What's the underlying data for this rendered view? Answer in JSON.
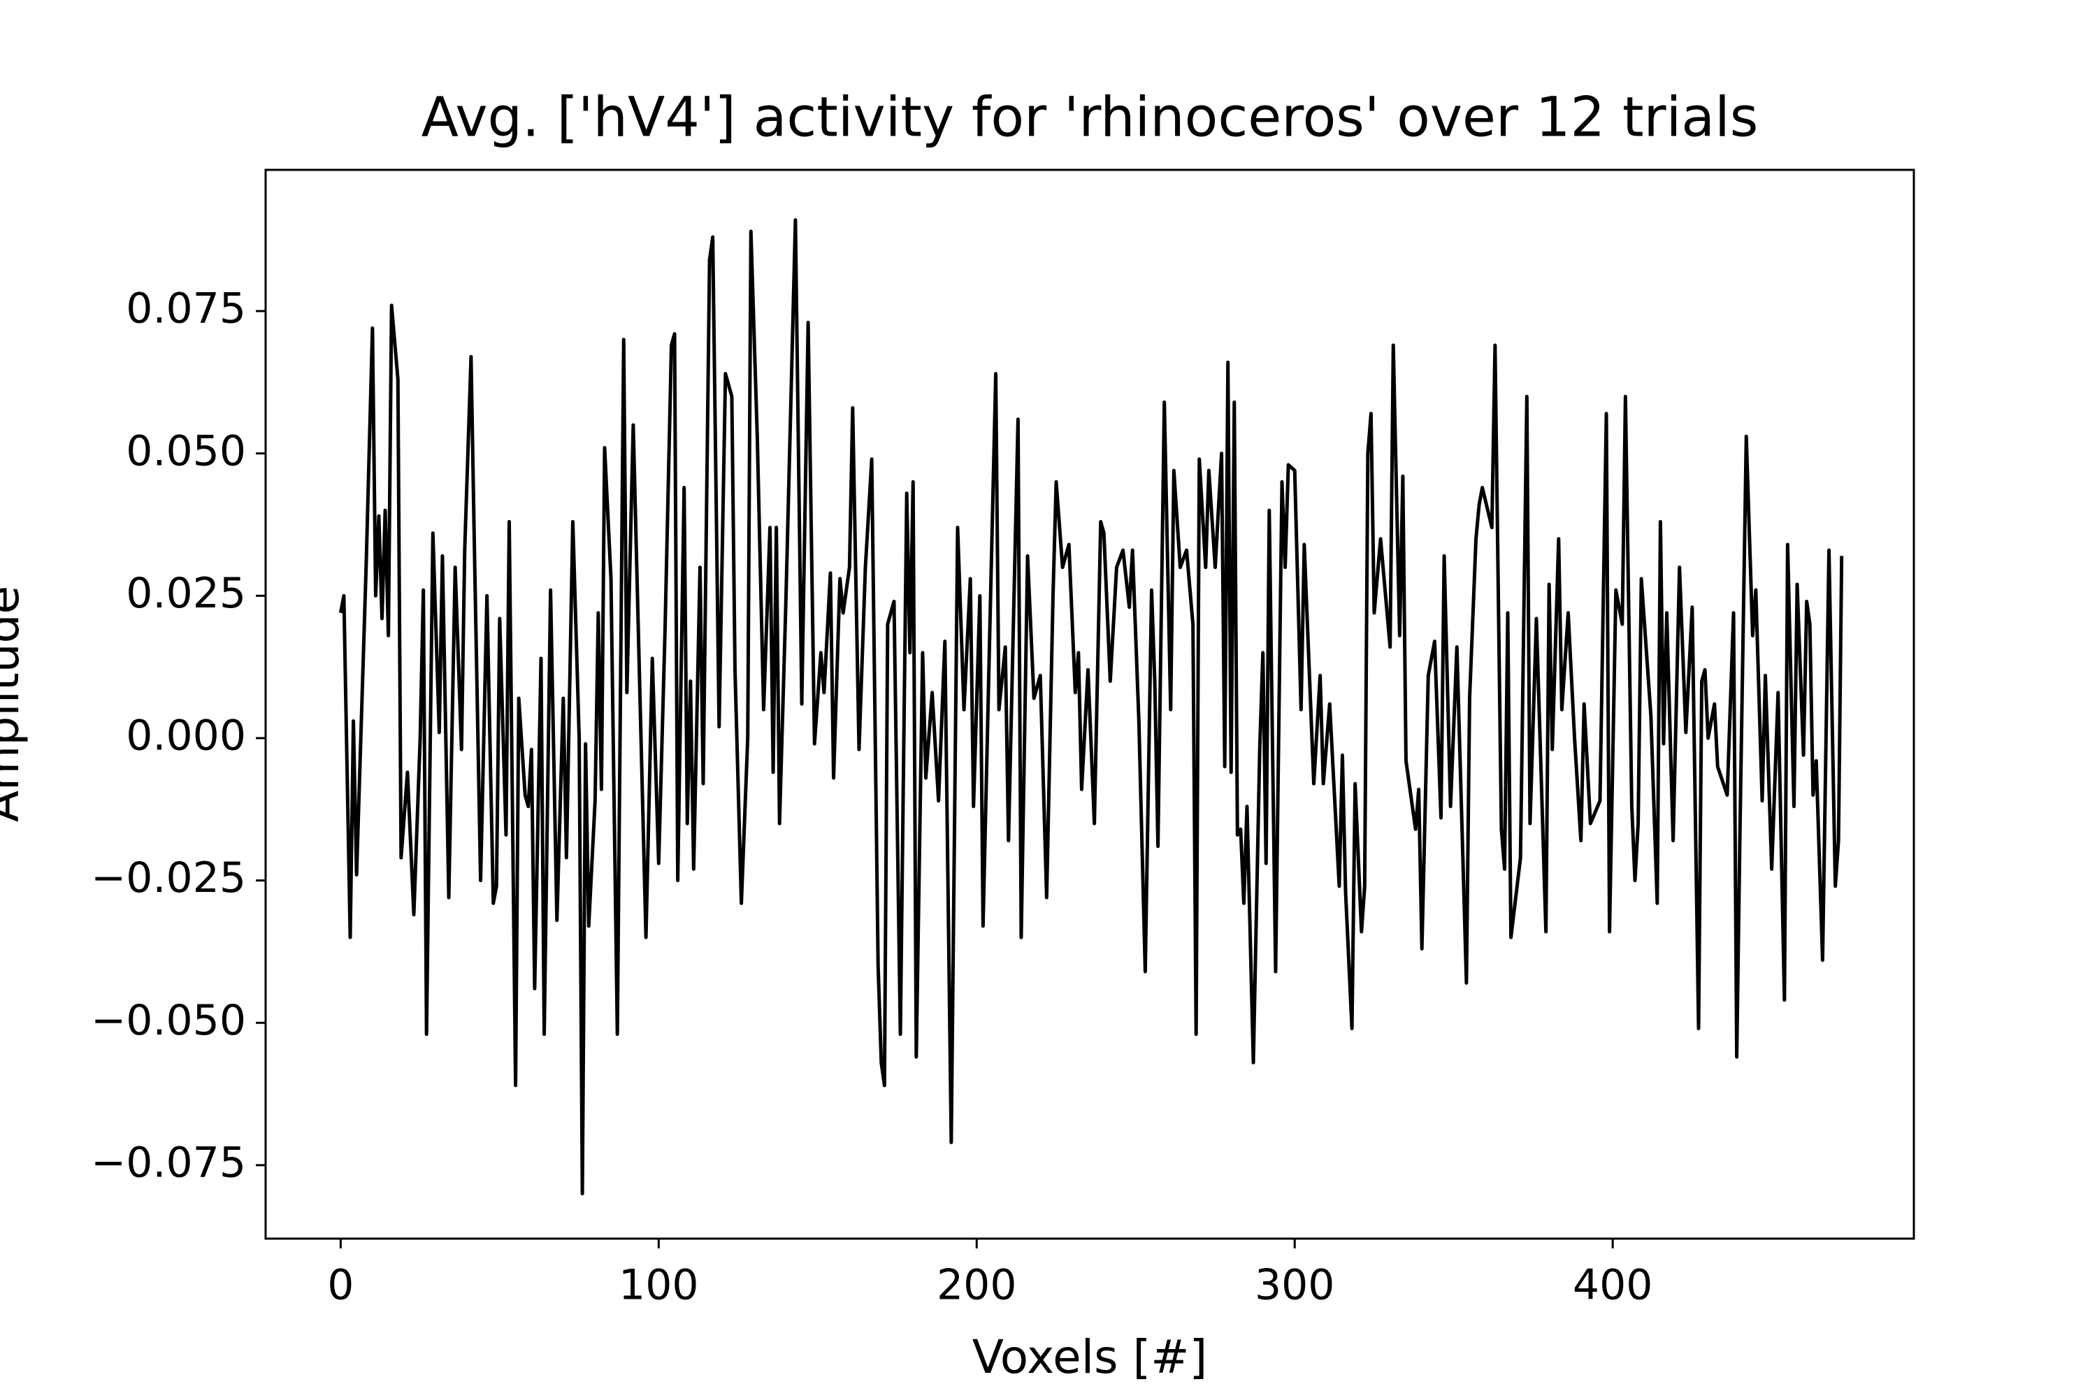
{
  "chart_data": {
    "type": "line",
    "title": "Avg. ['hV4'] activity for 'rhinoceros' over 12 trials",
    "x_label": "Voxels [#]",
    "y_label": "Amplitude",
    "color": "#000000",
    "x": [
      0,
      1,
      3,
      4,
      5,
      8,
      10,
      11,
      12,
      13,
      14,
      15,
      16,
      18,
      19,
      21,
      23,
      25,
      26,
      27,
      29,
      31,
      32,
      34,
      36,
      38,
      39,
      41,
      42,
      44,
      46,
      48,
      49,
      50,
      52,
      53,
      55,
      56,
      58,
      59,
      60,
      61,
      63,
      64,
      66,
      68,
      70,
      71,
      73,
      75,
      76,
      77,
      78,
      80,
      81,
      82,
      83,
      85,
      87,
      89,
      90,
      92,
      94,
      96,
      98,
      100,
      102,
      104,
      105,
      106,
      108,
      109,
      110,
      111,
      113,
      114,
      116,
      117,
      119,
      121,
      123,
      124,
      126,
      128,
      129,
      131,
      133,
      135,
      136,
      137,
      138,
      140,
      143,
      145,
      147,
      149,
      151,
      152,
      154,
      155,
      157,
      158,
      160,
      161,
      163,
      165,
      167,
      169,
      170,
      171,
      172,
      174,
      176,
      178,
      179,
      180,
      181,
      183,
      184,
      186,
      188,
      190,
      192,
      194,
      196,
      198,
      199,
      201,
      202,
      204,
      206,
      207,
      209,
      210,
      213,
      214,
      216,
      218,
      220,
      222,
      224,
      225,
      227,
      229,
      231,
      232,
      233,
      235,
      237,
      239,
      240,
      242,
      244,
      246,
      248,
      249,
      251,
      253,
      255,
      256,
      257,
      259,
      261,
      262,
      264,
      266,
      268,
      269,
      270,
      272,
      273,
      275,
      277,
      278,
      279,
      280,
      281,
      282,
      283,
      284,
      285,
      287,
      289,
      290,
      291,
      292,
      294,
      296,
      297,
      298,
      300,
      302,
      303,
      306,
      308,
      309,
      311,
      314,
      315,
      316,
      318,
      319,
      321,
      322,
      323,
      324,
      325,
      327,
      330,
      331,
      333,
      334,
      335,
      338,
      339,
      340,
      342,
      344,
      346,
      347,
      349,
      351,
      354,
      355,
      357,
      358,
      359,
      362,
      363,
      365,
      366,
      367,
      368,
      371,
      373,
      374,
      376,
      379,
      380,
      381,
      383,
      384,
      386,
      388,
      390,
      391,
      393,
      396,
      398,
      399,
      401,
      403,
      404,
      406,
      407,
      408,
      409,
      412,
      414,
      415,
      416,
      417,
      419,
      421,
      423,
      425,
      427,
      428,
      429,
      430,
      432,
      433,
      436,
      438,
      439,
      440,
      442,
      444,
      445,
      447,
      448,
      450,
      452,
      454,
      455,
      457,
      458,
      460,
      461,
      462,
      463,
      464,
      466,
      468,
      470,
      471,
      472
    ],
    "values": [
      0.022,
      0.025,
      -0.035,
      0.003,
      -0.024,
      0.03,
      0.072,
      0.025,
      0.039,
      0.021,
      0.04,
      0.018,
      0.076,
      0.063,
      -0.021,
      -0.006,
      -0.031,
      0.0,
      0.026,
      -0.052,
      0.036,
      0.001,
      0.032,
      -0.028,
      0.03,
      -0.002,
      0.033,
      0.067,
      0.035,
      -0.025,
      0.025,
      -0.029,
      -0.026,
      0.021,
      -0.017,
      0.038,
      -0.061,
      0.007,
      -0.01,
      -0.012,
      -0.002,
      -0.044,
      0.014,
      -0.052,
      0.026,
      -0.032,
      0.007,
      -0.021,
      0.038,
      0.0,
      -0.08,
      -0.001,
      -0.033,
      -0.011,
      0.022,
      -0.009,
      0.051,
      0.028,
      -0.052,
      0.07,
      0.008,
      0.055,
      0.01,
      -0.035,
      0.014,
      -0.022,
      0.019,
      0.069,
      0.071,
      -0.025,
      0.044,
      -0.015,
      0.01,
      -0.023,
      0.03,
      -0.008,
      0.084,
      0.088,
      0.002,
      0.064,
      0.06,
      0.012,
      -0.029,
      0.0,
      0.089,
      0.053,
      0.005,
      0.037,
      -0.006,
      0.037,
      -0.015,
      0.024,
      0.091,
      0.006,
      0.073,
      -0.001,
      0.015,
      0.008,
      0.029,
      -0.007,
      0.028,
      0.022,
      0.03,
      0.058,
      -0.002,
      0.03,
      0.049,
      -0.04,
      -0.057,
      -0.061,
      0.02,
      0.024,
      -0.052,
      0.043,
      0.015,
      0.045,
      -0.056,
      0.015,
      -0.007,
      0.008,
      -0.011,
      0.017,
      -0.071,
      0.037,
      0.005,
      0.028,
      -0.012,
      0.025,
      -0.033,
      0.016,
      0.064,
      0.005,
      0.016,
      -0.018,
      0.056,
      -0.035,
      0.032,
      0.007,
      0.011,
      -0.028,
      0.025,
      0.045,
      0.03,
      0.034,
      0.008,
      0.015,
      -0.009,
      0.012,
      -0.015,
      0.038,
      0.036,
      0.01,
      0.03,
      0.033,
      0.023,
      0.033,
      0.003,
      -0.041,
      0.026,
      0.01,
      -0.019,
      0.059,
      0.005,
      0.047,
      0.03,
      0.033,
      0.02,
      -0.052,
      0.049,
      0.03,
      0.047,
      0.03,
      0.05,
      -0.005,
      0.066,
      -0.006,
      0.059,
      -0.017,
      -0.016,
      -0.029,
      -0.012,
      -0.057,
      -0.002,
      0.015,
      -0.022,
      0.04,
      -0.041,
      0.045,
      0.03,
      0.048,
      0.047,
      0.005,
      0.034,
      -0.008,
      0.011,
      -0.008,
      0.006,
      -0.026,
      -0.003,
      -0.027,
      -0.051,
      -0.008,
      -0.034,
      -0.026,
      0.05,
      0.057,
      0.022,
      0.035,
      0.016,
      0.069,
      0.018,
      0.046,
      -0.004,
      -0.016,
      -0.009,
      -0.037,
      0.011,
      0.017,
      -0.014,
      0.032,
      -0.012,
      0.016,
      -0.043,
      0.007,
      0.035,
      0.041,
      0.044,
      0.037,
      0.069,
      -0.016,
      -0.023,
      0.022,
      -0.035,
      -0.021,
      0.06,
      -0.015,
      0.021,
      -0.034,
      0.027,
      -0.002,
      0.035,
      0.005,
      0.022,
      0.0,
      -0.018,
      0.006,
      -0.015,
      -0.011,
      0.057,
      -0.034,
      0.026,
      0.02,
      0.06,
      -0.012,
      -0.025,
      -0.015,
      0.028,
      0.004,
      -0.029,
      0.038,
      -0.001,
      0.022,
      -0.018,
      0.03,
      0.001,
      0.023,
      -0.051,
      0.01,
      0.012,
      0.0,
      0.006,
      -0.005,
      -0.01,
      0.022,
      -0.056,
      -0.017,
      0.053,
      0.018,
      0.026,
      -0.011,
      0.011,
      -0.023,
      0.008,
      -0.046,
      0.034,
      -0.012,
      0.027,
      -0.003,
      0.024,
      0.02,
      -0.01,
      -0.004,
      -0.039,
      0.033,
      -0.026,
      -0.018,
      0.032
    ],
    "xlim": [
      -23.6,
      494.7
    ],
    "ylim": [
      -0.0879,
      0.0998
    ],
    "xticks": [
      0,
      100,
      200,
      300,
      400
    ],
    "yticks": [
      {
        "value": -0.075,
        "label": "−0.075"
      },
      {
        "value": -0.05,
        "label": "−0.050"
      },
      {
        "value": -0.025,
        "label": "−0.025"
      },
      {
        "value": 0,
        "label": "0.000"
      },
      0.025,
      {
        "value": 0.05,
        "label": "0.050"
      },
      0.075
    ]
  }
}
